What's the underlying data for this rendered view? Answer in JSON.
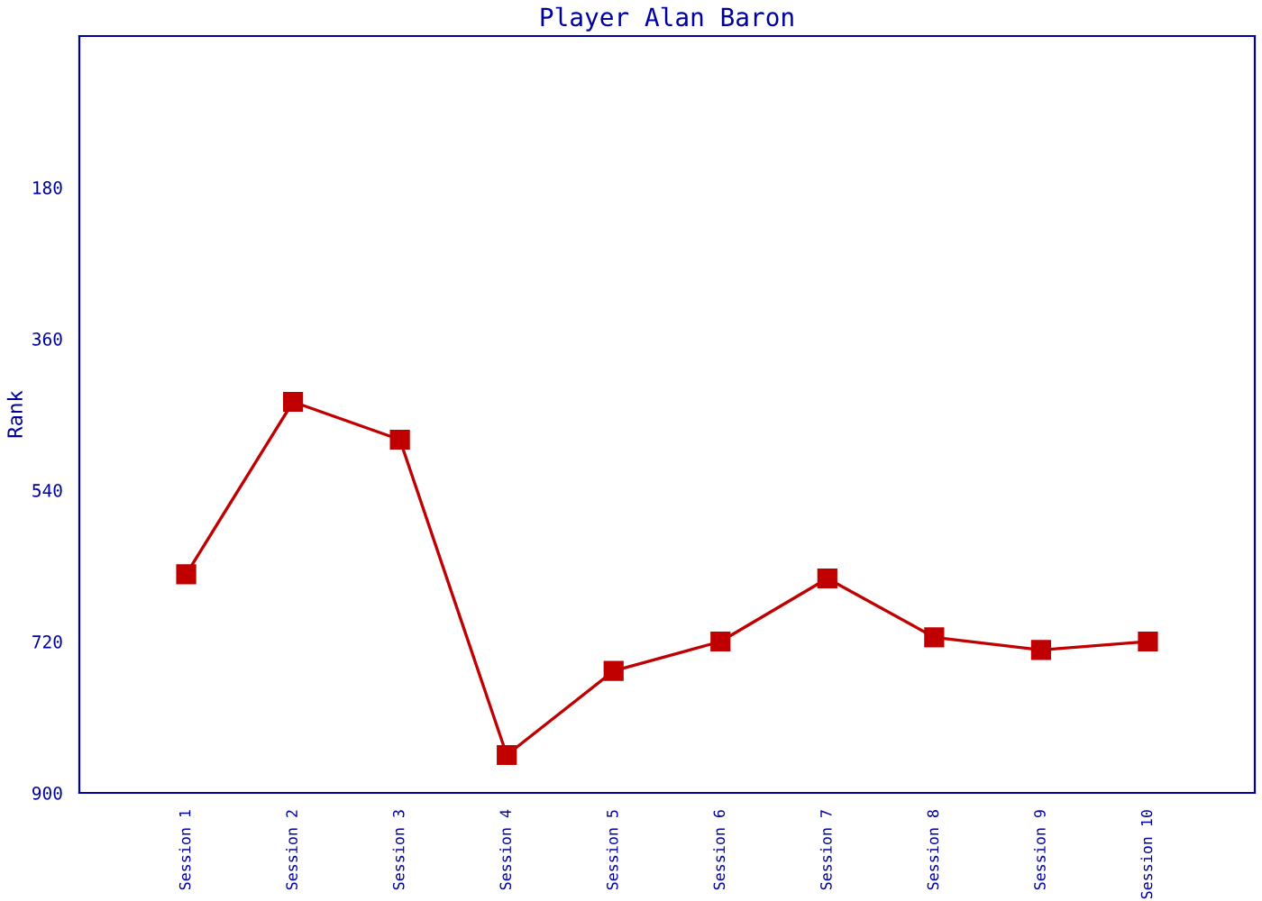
{
  "chart_data": {
    "type": "line",
    "title": "Player Alan Baron",
    "ylabel": "Rank",
    "categories": [
      "Session 1",
      "Session 2",
      "Session 3",
      "Session 4",
      "Session 5",
      "Session 6",
      "Session 7",
      "Session 8",
      "Session 9",
      "Session 10"
    ],
    "series": [
      {
        "color": "#c00000",
        "values": [
          640,
          435,
          480,
          855,
          755,
          720,
          645,
          715,
          730,
          720
        ]
      }
    ],
    "ylim": [
      900,
      0
    ],
    "yticks": [
      180,
      360,
      540,
      720,
      900
    ],
    "marker": "square",
    "line_style": "solid",
    "grid": false,
    "legend": false
  }
}
